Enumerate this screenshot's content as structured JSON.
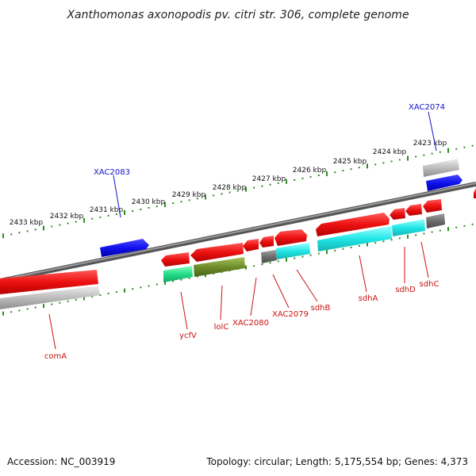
{
  "title": "Xanthomonas axonopodis pv. citri str. 306, complete genome",
  "accession": "Accession: NC_003919",
  "topology": "Topology: circular; Length: 5,175,554 bp; Genes: 4,373",
  "colors": {
    "backbone": "#7a7a7a",
    "tick": "#2e8b22",
    "forward_gene": "#ee1111",
    "label_red": "#cc1111",
    "label_blue": "#1111cc",
    "blue_gene": "#1111ee",
    "cyan_feature": "#22e6e6",
    "green_feature": "#22dd88",
    "olive_feature": "#6e8c2a",
    "gray_feature": "#6e6e6e",
    "light_gray_feature": "#bdbdbd"
  },
  "scale_ticks": [
    "2423 kbp",
    "2424 kbp",
    "2425 kbp",
    "2426 kbp",
    "2427 kbp",
    "2428 kbp",
    "2429 kbp",
    "2430 kbp",
    "2431 kbp",
    "2432 kbp",
    "2433 kbp"
  ],
  "gene_labels": {
    "XAC2074": "XAC2074",
    "XAC2083": "XAC2083",
    "comA": "comA",
    "ycfV": "ycfV",
    "lolC": "lolC",
    "XAC2080": "XAC2080",
    "XAC2079": "XAC2079",
    "sdhB": "sdhB",
    "sdhA": "sdhA",
    "sdhD": "sdhD",
    "sdhC": "sdhC"
  }
}
